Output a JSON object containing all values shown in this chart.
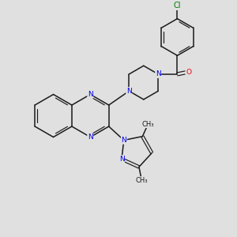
{
  "background_color": "#e0e0e0",
  "bond_color": "#1a1a1a",
  "nitrogen_color": "#0000ee",
  "oxygen_color": "#ee0000",
  "chlorine_color": "#007700",
  "font_size_atoms": 6.5,
  "fig_width": 3.0,
  "fig_height": 3.0,
  "xlim": [
    0,
    10
  ],
  "ylim": [
    0,
    10
  ]
}
